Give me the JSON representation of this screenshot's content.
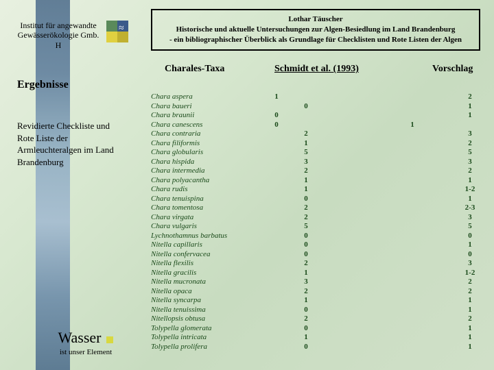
{
  "institute": {
    "line1": "Institut für angewandte",
    "line2": "Gewässerökologie Gmb. H"
  },
  "titleBox": {
    "author": "Lothar Täuscher",
    "line2": "Historische und aktuelle Untersuchungen zur Algen-Besiedlung im Land Brandenburg",
    "line3": "- ein bibliographischer Überblick als Grundlage für Checklisten und Rote Listen der Algen"
  },
  "headers": {
    "taxa": "Charales-Taxa",
    "schmidt": "Schmidt et al. (1993)",
    "vorschlag": "Vorschlag"
  },
  "ergebnisse": "Ergebnisse",
  "leftText": "Revidierte Checkliste und Rote Liste der Armleuchteralgen im Land Brandenburg",
  "wasser": {
    "big": "Wasser",
    "small": "ist unser Element"
  },
  "rows": [
    {
      "t": "Chara aspera",
      "a": "1",
      "b": "",
      "c": "",
      "d": "2"
    },
    {
      "t": "Chara baueri",
      "a": "",
      "b": "0",
      "c": "",
      "d": "1"
    },
    {
      "t": "Chara braunii",
      "a": "0",
      "b": "",
      "c": "",
      "d": "1"
    },
    {
      "t": "Chara canescens",
      "a": "0",
      "b": "",
      "c": "1",
      "d": ""
    },
    {
      "t": "Chara contraria",
      "a": "",
      "b": "2",
      "c": "",
      "d": "3"
    },
    {
      "t": "Chara filiformis",
      "a": "",
      "b": "1",
      "c": "",
      "d": "2"
    },
    {
      "t": "Chara globularis",
      "a": "",
      "b": "5",
      "c": "",
      "d": "5"
    },
    {
      "t": "Chara hispida",
      "a": "",
      "b": "3",
      "c": "",
      "d": "3"
    },
    {
      "t": "Chara intermedia",
      "a": "",
      "b": "2",
      "c": "",
      "d": "2"
    },
    {
      "t": "Chara polyacantha",
      "a": "",
      "b": "1",
      "c": "",
      "d": "1"
    },
    {
      "t": "Chara rudis",
      "a": "",
      "b": "1",
      "c": "",
      "d": "1-2"
    },
    {
      "t": "Chara tenuispina",
      "a": "",
      "b": "0",
      "c": "",
      "d": "1"
    },
    {
      "t": "Chara tomentosa",
      "a": "",
      "b": "2",
      "c": "",
      "d": "2-3"
    },
    {
      "t": "Chara virgata",
      "a": "",
      "b": "2",
      "c": "",
      "d": "3"
    },
    {
      "t": "Chara vulgaris",
      "a": "",
      "b": "5",
      "c": "",
      "d": "5"
    },
    {
      "t": "Lychnothamnus barbatus",
      "a": "",
      "b": "0",
      "c": "",
      "d": "0"
    },
    {
      "t": "Nitella capillaris",
      "a": "",
      "b": "0",
      "c": "",
      "d": "1"
    },
    {
      "t": "Nitella confervacea",
      "a": "",
      "b": "0",
      "c": "",
      "d": "0"
    },
    {
      "t": "Nitella flexilis",
      "a": "",
      "b": "2",
      "c": "",
      "d": "3"
    },
    {
      "t": "Nitella gracilis",
      "a": "",
      "b": "1",
      "c": "",
      "d": "1-2"
    },
    {
      "t": "Nitella mucronata",
      "a": "",
      "b": "3",
      "c": "",
      "d": "2"
    },
    {
      "t": "Nitella opaca",
      "a": "",
      "b": "2",
      "c": "",
      "d": "2"
    },
    {
      "t": "Nitella syncarpa",
      "a": "",
      "b": "1",
      "c": "",
      "d": "1"
    },
    {
      "t": "Nitella tenuissima",
      "a": "",
      "b": "0",
      "c": "",
      "d": "1"
    },
    {
      "t": "Nitellopsis obtusa",
      "a": "",
      "b": "2",
      "c": "",
      "d": "2"
    },
    {
      "t": "Tolypella glomerata",
      "a": "",
      "b": "0",
      "c": "",
      "d": "1"
    },
    {
      "t": "Tolypella intricata",
      "a": "",
      "b": "1",
      "c": "",
      "d": "1"
    },
    {
      "t": "Tolypella prolifera",
      "a": "",
      "b": "0",
      "c": "",
      "d": "1"
    }
  ]
}
